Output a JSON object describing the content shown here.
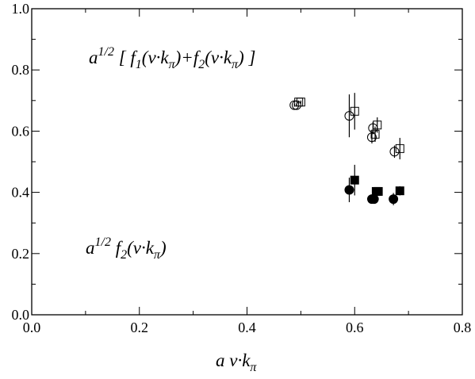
{
  "chart_data": {
    "type": "scatter",
    "xlim": [
      0,
      0.8
    ],
    "ylim": [
      0,
      1.0
    ],
    "xticks": [
      {
        "value": 0,
        "label": "0.0"
      },
      {
        "value": 0.2,
        "label": "0.2"
      },
      {
        "value": 0.4,
        "label": "0.4"
      },
      {
        "value": 0.6,
        "label": "0.6"
      },
      {
        "value": 0.8,
        "label": "0.8"
      }
    ],
    "yticks": [
      {
        "value": 0,
        "label": "0.0"
      },
      {
        "value": 0.2,
        "label": "0.2"
      },
      {
        "value": 0.4,
        "label": "0.4"
      },
      {
        "value": 0.6,
        "label": "0.6"
      },
      {
        "value": 0.8,
        "label": "0.8"
      },
      {
        "value": 1.0,
        "label": "1.0"
      }
    ],
    "xminor": [
      0.1,
      0.3,
      0.5,
      0.7
    ],
    "yminor": [
      0.1,
      0.3,
      0.5,
      0.7,
      0.9
    ],
    "xlabel": [
      {
        "text": "a v·k",
        "style": "normal"
      },
      {
        "text": "π",
        "style": "sub"
      }
    ],
    "annotations": [
      [
        {
          "text": "a",
          "style": "normal"
        },
        {
          "text": "1/2",
          "style": "sup"
        },
        {
          "text": " [ f",
          "style": "normal"
        },
        {
          "text": "1",
          "style": "sub"
        },
        {
          "text": "(v·k",
          "style": "normal"
        },
        {
          "text": "π",
          "style": "sub"
        },
        {
          "text": ")+f",
          "style": "normal"
        },
        {
          "text": "2",
          "style": "sub"
        },
        {
          "text": "(v·k",
          "style": "normal"
        },
        {
          "text": "π",
          "style": "sub"
        },
        {
          "text": ") ]",
          "style": "normal"
        }
      ],
      [
        {
          "text": "a",
          "style": "normal"
        },
        {
          "text": "1/2",
          "style": "sup"
        },
        {
          "text": " f",
          "style": "normal"
        },
        {
          "text": "2",
          "style": "sub"
        },
        {
          "text": "(v·k",
          "style": "normal"
        },
        {
          "text": "π",
          "style": "sub"
        },
        {
          "text": ")",
          "style": "normal"
        }
      ]
    ],
    "series": [
      {
        "marker": "circle",
        "filled": false,
        "color": "#000000",
        "x": [
          0.488,
          0.492,
          0.59,
          0.632,
          0.634,
          0.674
        ],
        "values": [
          0.685,
          0.685,
          0.65,
          0.58,
          0.61,
          0.533
        ],
        "errors": [
          0.005,
          0.005,
          0.07,
          0.02,
          0.02,
          0.02
        ]
      },
      {
        "marker": "square",
        "filled": false,
        "color": "#000000",
        "x": [
          0.496,
          0.5,
          0.6,
          0.638,
          0.642,
          0.684
        ],
        "values": [
          0.695,
          0.695,
          0.665,
          0.59,
          0.62,
          0.543
        ],
        "errors": [
          0.005,
          0.005,
          0.06,
          0.025,
          0.025,
          0.035
        ]
      },
      {
        "marker": "circle",
        "filled": true,
        "color": "#000000",
        "x": [
          0.59,
          0.632,
          0.636,
          0.672
        ],
        "values": [
          0.408,
          0.378,
          0.378,
          0.378
        ],
        "errors": [
          0.04,
          0.01,
          0.01,
          0.02
        ]
      },
      {
        "marker": "square",
        "filled": true,
        "color": "#000000",
        "x": [
          0.6,
          0.64,
          0.644,
          0.684
        ],
        "values": [
          0.44,
          0.403,
          0.403,
          0.405
        ],
        "errors": [
          0.05,
          0.01,
          0.01,
          0.015
        ]
      }
    ]
  }
}
